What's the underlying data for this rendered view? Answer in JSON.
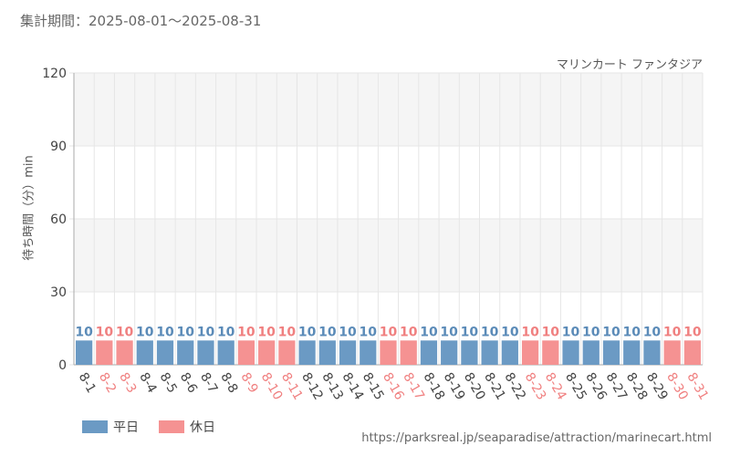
{
  "header": {
    "period_label": "集計期間：2025-08-01～2025-08-31",
    "attraction_name": "マリンカート ファンタジア",
    "source_url": "https://parksreal.jp/seaparadise/attraction/marinecart.html"
  },
  "colors": {
    "weekday": "#6b9ac4",
    "holiday": "#f59292",
    "weekday_text": "#5b8bb8",
    "holiday_text": "#f08080",
    "band": "#f5f5f5",
    "grid": "#e6e6e6",
    "axis": "#aaaaaa"
  },
  "legend": [
    {
      "label": "平日",
      "color": "#6b9ac4"
    },
    {
      "label": "休日",
      "color": "#f59292"
    }
  ],
  "chart_data": {
    "type": "bar",
    "title": "",
    "ylabel": "待ち時間（分）min",
    "ylim": [
      0,
      120
    ],
    "yticks": [
      0,
      30,
      60,
      90,
      120
    ],
    "categories": [
      "8-1",
      "8-2",
      "8-3",
      "8-4",
      "8-5",
      "8-6",
      "8-7",
      "8-8",
      "8-9",
      "8-10",
      "8-11",
      "8-12",
      "8-13",
      "8-14",
      "8-15",
      "8-16",
      "8-17",
      "8-18",
      "8-19",
      "8-20",
      "8-21",
      "8-22",
      "8-23",
      "8-24",
      "8-25",
      "8-26",
      "8-27",
      "8-28",
      "8-29",
      "8-30",
      "8-31"
    ],
    "values": [
      10,
      10,
      10,
      10,
      10,
      10,
      10,
      10,
      10,
      10,
      10,
      10,
      10,
      10,
      10,
      10,
      10,
      10,
      10,
      10,
      10,
      10,
      10,
      10,
      10,
      10,
      10,
      10,
      10,
      10,
      10
    ],
    "day_type": [
      "平日",
      "休日",
      "休日",
      "平日",
      "平日",
      "平日",
      "平日",
      "平日",
      "休日",
      "休日",
      "休日",
      "平日",
      "平日",
      "平日",
      "平日",
      "休日",
      "休日",
      "平日",
      "平日",
      "平日",
      "平日",
      "平日",
      "休日",
      "休日",
      "平日",
      "平日",
      "平日",
      "平日",
      "平日",
      "休日",
      "休日"
    ],
    "legend_position": "bottom-left"
  }
}
